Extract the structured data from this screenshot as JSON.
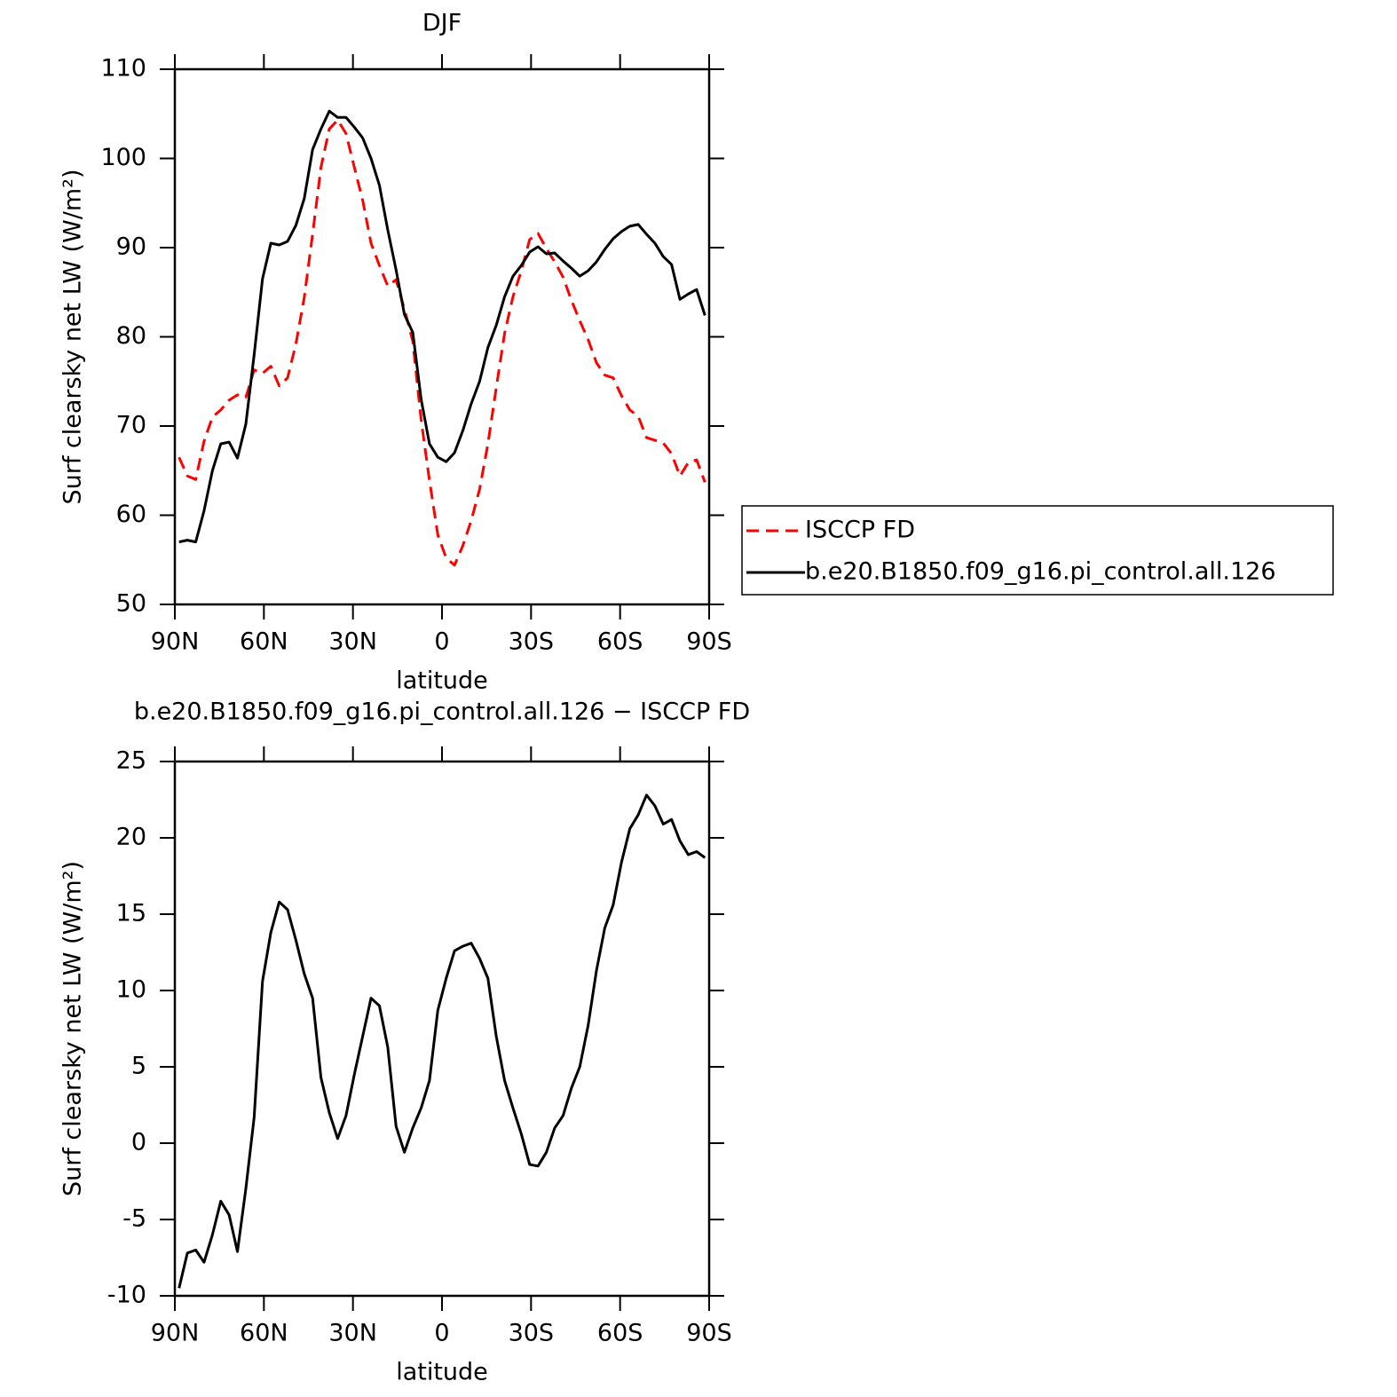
{
  "chart_data": [
    {
      "type": "line",
      "title": "DJF",
      "x_label": "latitude",
      "y_label": "Surf clearsky net LW (W/m²)",
      "x": [
        88.59,
        85.78,
        82.97,
        80.16,
        77.34,
        74.53,
        71.72,
        68.91,
        66.09,
        63.28,
        60.47,
        57.66,
        54.84,
        52.03,
        49.22,
        46.41,
        43.59,
        40.78,
        37.97,
        35.16,
        32.34,
        29.53,
        26.72,
        23.91,
        21.09,
        18.28,
        15.47,
        12.66,
        9.84,
        7.03,
        4.22,
        1.41,
        -1.41,
        -4.22,
        -7.03,
        -9.84,
        -12.66,
        -15.47,
        -18.28,
        -21.09,
        -23.91,
        -26.72,
        -29.53,
        -32.34,
        -35.16,
        -37.97,
        -40.78,
        -43.59,
        -46.41,
        -49.22,
        -52.03,
        -54.84,
        -57.66,
        -60.47,
        -63.28,
        -66.09,
        -68.91,
        -71.72,
        -74.53,
        -77.34,
        -80.16,
        -82.97,
        -85.78,
        -88.59
      ],
      "series": [
        {
          "name": "ISCCP FD",
          "color": "#ff0000",
          "dashed": true,
          "values": [
            66.5,
            64.4,
            64.0,
            68.3,
            71.0,
            71.8,
            72.9,
            73.5,
            73.2,
            76.3,
            75.9,
            76.7,
            74.5,
            75.4,
            79.2,
            84.4,
            91.5,
            99.0,
            103.3,
            104.3,
            102.8,
            99.0,
            95.3,
            90.5,
            88.0,
            85.7,
            86.4,
            83.1,
            79.5,
            70.7,
            63.9,
            57.8,
            55.2,
            54.4,
            56.6,
            59.4,
            62.9,
            68.0,
            74.3,
            80.4,
            84.5,
            87.4,
            90.9,
            91.6,
            89.9,
            88.4,
            86.7,
            84.1,
            81.8,
            79.7,
            77.1,
            75.7,
            75.4,
            73.4,
            71.8,
            71.1,
            68.7,
            68.4,
            68.1,
            66.9,
            64.4,
            65.9,
            66.2,
            63.7
          ]
        },
        {
          "name": "b.e20.B1850.f09_g16.pi_control.all.126",
          "color": "#000000",
          "dashed": false,
          "values": [
            57.0,
            57.2,
            57.0,
            60.5,
            65.0,
            68.0,
            68.2,
            66.4,
            70.2,
            78.0,
            86.5,
            90.5,
            90.3,
            90.7,
            92.5,
            95.5,
            101.0,
            103.3,
            105.3,
            104.6,
            104.6,
            103.5,
            102.3,
            100.0,
            97.0,
            92.0,
            87.5,
            82.5,
            80.5,
            73.0,
            68.0,
            66.5,
            66.0,
            67.0,
            69.5,
            72.5,
            75.0,
            78.8,
            81.3,
            84.5,
            86.8,
            88.0,
            89.5,
            90.1,
            89.3,
            89.4,
            88.5,
            87.7,
            86.8,
            87.4,
            88.4,
            89.8,
            91.0,
            91.8,
            92.4,
            92.6,
            91.5,
            90.5,
            89.0,
            88.1,
            84.2,
            84.8,
            85.3,
            82.4
          ]
        }
      ],
      "xlim": [
        90,
        -90
      ],
      "ylim": [
        50,
        110
      ],
      "xticks": [
        {
          "value": 90,
          "label": "90N"
        },
        {
          "value": 60,
          "label": "60N"
        },
        {
          "value": 30,
          "label": "30N"
        },
        0,
        {
          "value": -30,
          "label": "30S"
        },
        {
          "value": -60,
          "label": "60S"
        },
        {
          "value": -90,
          "label": "90S"
        }
      ],
      "yticks": [
        50,
        60,
        70,
        80,
        90,
        100,
        110
      ],
      "legend": "right"
    },
    {
      "type": "line",
      "title": "b.e20.B1850.f09_g16.pi_control.all.126 − ISCCP FD",
      "x_label": "latitude",
      "y_label": "Surf clearsky net LW (W/m²)",
      "x": [
        88.59,
        85.78,
        82.97,
        80.16,
        77.34,
        74.53,
        71.72,
        68.91,
        66.09,
        63.28,
        60.47,
        57.66,
        54.84,
        52.03,
        49.22,
        46.41,
        43.59,
        40.78,
        37.97,
        35.16,
        32.34,
        29.53,
        26.72,
        23.91,
        21.09,
        18.28,
        15.47,
        12.66,
        9.84,
        7.03,
        4.22,
        1.41,
        -1.41,
        -4.22,
        -7.03,
        -9.84,
        -12.66,
        -15.47,
        -18.28,
        -21.09,
        -23.91,
        -26.72,
        -29.53,
        -32.34,
        -35.16,
        -37.97,
        -40.78,
        -43.59,
        -46.41,
        -49.22,
        -52.03,
        -54.84,
        -57.66,
        -60.47,
        -63.28,
        -66.09,
        -68.91,
        -71.72,
        -74.53,
        -77.34,
        -80.16,
        -82.97,
        -85.78,
        -88.59
      ],
      "color": "#000000",
      "values": [
        -9.5,
        -7.2,
        -7.0,
        -7.8,
        -6.0,
        -3.8,
        -4.7,
        -7.1,
        -3.0,
        1.7,
        10.6,
        13.8,
        15.8,
        15.3,
        13.3,
        11.1,
        9.5,
        4.3,
        2.0,
        0.3,
        1.8,
        4.5,
        7.0,
        9.5,
        9.0,
        6.3,
        1.1,
        -0.6,
        1.0,
        2.3,
        4.1,
        8.7,
        10.8,
        12.6,
        12.9,
        13.1,
        12.1,
        10.8,
        7.0,
        4.1,
        2.3,
        0.6,
        -1.4,
        -1.5,
        -0.6,
        1.0,
        1.8,
        3.6,
        5.0,
        7.7,
        11.3,
        14.1,
        15.6,
        18.4,
        20.6,
        21.5,
        22.8,
        22.1,
        20.9,
        21.2,
        19.8,
        18.9,
        19.1,
        18.7
      ],
      "xlim": [
        90,
        -90
      ],
      "ylim": [
        -10,
        25
      ],
      "xticks": [
        {
          "value": 90,
          "label": "90N"
        },
        {
          "value": 60,
          "label": "60N"
        },
        {
          "value": 30,
          "label": "30N"
        },
        0,
        {
          "value": -30,
          "label": "30S"
        },
        {
          "value": -60,
          "label": "60S"
        },
        {
          "value": -90,
          "label": "90S"
        }
      ],
      "yticks": [
        -10,
        -5,
        0,
        5,
        10,
        15,
        20,
        25
      ]
    }
  ]
}
